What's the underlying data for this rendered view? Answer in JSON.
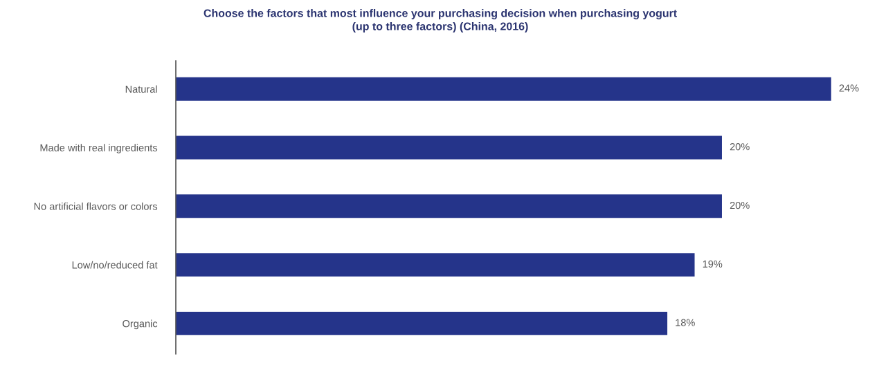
{
  "chart_data": {
    "type": "bar",
    "orientation": "horizontal",
    "title": "Choose the factors that most influence your purchasing decision when purchasing yogurt\n(up to three factors) (China, 2016)",
    "categories": [
      "Natural",
      "Made with real ingredients",
      "No artificial flavors or colors",
      "Low/no/reduced fat",
      "Organic"
    ],
    "values": [
      24,
      20,
      20,
      19,
      18
    ],
    "value_labels": [
      "24%",
      "20%",
      "20%",
      "19%",
      "18%"
    ],
    "color": "#25348a",
    "tick_labels": "y"
  }
}
